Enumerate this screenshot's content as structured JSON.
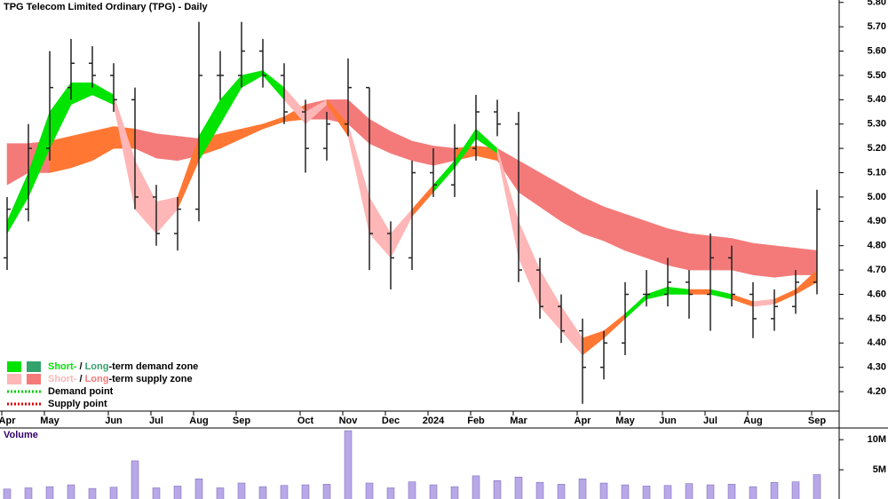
{
  "chart_data": {
    "type": "candlestick",
    "title": "TPG Telecom Limited Ordinary (TPG) - Daily",
    "categories": [
      "Apr",
      null,
      "May",
      null,
      null,
      "Jun",
      null,
      "Jul",
      null,
      "Aug",
      null,
      "Sep",
      null,
      null,
      "Oct",
      null,
      "Nov",
      null,
      "Dec",
      null,
      "2024",
      null,
      "Feb",
      null,
      "Mar",
      null,
      null,
      "Apr",
      null,
      "May",
      null,
      "Jun",
      null,
      "Jul",
      null,
      "Aug",
      null,
      null,
      "Sep"
    ],
    "open": [
      4.75,
      4.95,
      5.2,
      5.45,
      5.55,
      5.5,
      5.4,
      5.0,
      4.85,
      4.95,
      5.5,
      5.5,
      5.6,
      5.5,
      5.35,
      5.2,
      5.3,
      5.45,
      4.85,
      4.75,
      5.1,
      5.05,
      5.2,
      5.35,
      5.3,
      4.7,
      4.55,
      4.45,
      4.3,
      4.4,
      4.6,
      4.6,
      4.65,
      4.6,
      4.75,
      4.6,
      4.5,
      4.55,
      4.65
    ],
    "high": [
      5.0,
      5.3,
      5.6,
      5.65,
      5.62,
      5.55,
      5.45,
      5.05,
      5.0,
      5.72,
      5.6,
      5.72,
      5.65,
      5.55,
      5.4,
      5.35,
      5.57,
      5.45,
      4.9,
      5.15,
      5.2,
      5.3,
      5.42,
      5.4,
      5.35,
      4.75,
      4.6,
      4.5,
      4.45,
      4.65,
      4.7,
      4.75,
      4.7,
      4.85,
      4.8,
      4.65,
      4.62,
      4.7,
      5.03
    ],
    "low": [
      4.7,
      4.9,
      5.15,
      5.4,
      5.45,
      5.35,
      4.95,
      4.8,
      4.78,
      4.9,
      5.4,
      5.45,
      5.45,
      5.3,
      5.1,
      5.15,
      5.25,
      4.7,
      4.62,
      4.7,
      5.0,
      5.0,
      5.15,
      5.25,
      4.65,
      4.5,
      4.4,
      4.15,
      4.25,
      4.35,
      4.55,
      4.55,
      4.5,
      4.45,
      4.55,
      4.42,
      4.45,
      4.52,
      4.6
    ],
    "close": [
      4.95,
      5.2,
      5.45,
      5.55,
      5.5,
      5.4,
      5.0,
      4.85,
      4.95,
      5.5,
      5.5,
      5.6,
      5.5,
      5.35,
      5.2,
      5.3,
      5.45,
      4.85,
      4.75,
      5.1,
      5.05,
      5.2,
      5.35,
      5.3,
      4.7,
      4.55,
      4.45,
      4.3,
      4.4,
      4.6,
      4.6,
      4.65,
      4.6,
      4.75,
      4.6,
      4.5,
      4.55,
      4.65,
      4.95
    ],
    "candle_color": "#222222",
    "long_zone": {
      "upper": [
        5.22,
        5.22,
        5.23,
        5.25,
        5.27,
        5.29,
        5.28,
        5.26,
        5.25,
        5.24,
        5.26,
        5.28,
        5.3,
        5.33,
        5.38,
        5.4,
        5.4,
        5.32,
        5.27,
        5.23,
        5.21,
        5.2,
        5.21,
        5.2,
        5.15,
        5.1,
        5.05,
        5.0,
        4.96,
        4.93,
        4.9,
        4.87,
        4.85,
        4.84,
        4.83,
        4.81,
        4.8,
        4.79,
        4.78
      ],
      "lower": [
        5.05,
        5.1,
        5.1,
        5.12,
        5.15,
        5.2,
        5.2,
        5.16,
        5.15,
        5.17,
        5.2,
        5.24,
        5.28,
        5.31,
        5.32,
        5.32,
        5.3,
        5.22,
        5.18,
        5.15,
        5.13,
        5.15,
        5.17,
        5.15,
        5.02,
        4.96,
        4.9,
        4.85,
        4.82,
        4.78,
        4.75,
        4.72,
        4.7,
        4.7,
        4.7,
        4.68,
        4.67,
        4.68,
        4.68
      ],
      "colors": [
        "#f47a7a",
        "#f47a7a",
        "#ff7733",
        "#ff7733",
        "#ff7733",
        "#ff7733",
        "#f47a7a",
        "#f47a7a",
        "#f47a7a",
        "#ff7733",
        "#ff7733",
        "#ff7733",
        "#ff7733",
        "#ff7733",
        "#f47a7a",
        "#f47a7a",
        "#f47a7a",
        "#f47a7a",
        "#f47a7a",
        "#f47a7a",
        "#f47a7a",
        "#ff7733",
        "#ff7733",
        "#f47a7a",
        "#f47a7a",
        "#f47a7a",
        "#f47a7a",
        "#f47a7a",
        "#f47a7a",
        "#f47a7a",
        "#f47a7a",
        "#f47a7a",
        "#f47a7a",
        "#f47a7a",
        "#f47a7a",
        "#f47a7a",
        "#f47a7a",
        "#f47a7a",
        "#f47a7a"
      ]
    },
    "short_zone": {
      "upper": [
        4.9,
        5.1,
        5.35,
        5.47,
        5.47,
        5.42,
        5.15,
        4.98,
        5.0,
        5.25,
        5.4,
        5.5,
        5.52,
        5.45,
        5.35,
        5.4,
        5.3,
        5.0,
        4.85,
        4.95,
        5.05,
        5.15,
        5.28,
        5.2,
        4.9,
        4.7,
        4.55,
        4.42,
        4.45,
        4.52,
        4.6,
        4.63,
        4.62,
        4.62,
        4.6,
        4.57,
        4.58,
        4.62,
        4.7
      ],
      "lower": [
        4.85,
        5.0,
        5.2,
        5.38,
        5.42,
        5.38,
        4.95,
        4.85,
        4.95,
        5.15,
        5.3,
        5.45,
        5.5,
        5.4,
        5.3,
        5.38,
        5.25,
        4.85,
        4.75,
        4.92,
        5.02,
        5.12,
        5.24,
        5.18,
        4.75,
        4.55,
        4.45,
        4.35,
        4.42,
        4.5,
        4.58,
        4.6,
        4.6,
        4.6,
        4.58,
        4.55,
        4.56,
        4.6,
        4.65
      ],
      "colors": [
        "#00e400",
        "#00e400",
        "#00e400",
        "#00e400",
        "#00e400",
        "#ffb6b6",
        "#ffb6b6",
        "#ffb6b6",
        "#ff7733",
        "#00e400",
        "#00e400",
        "#00e400",
        "#00e400",
        "#ffb6b6",
        "#ffb6b6",
        "#ff7733",
        "#ffb6b6",
        "#ffb6b6",
        "#ffb6b6",
        "#ff7733",
        "#00e400",
        "#00e400",
        "#00e400",
        "#ffb6b6",
        "#ffb6b6",
        "#ffb6b6",
        "#ffb6b6",
        "#ff7733",
        "#ff7733",
        "#00e400",
        "#00e400",
        "#00e400",
        "#ff7733",
        "#00e400",
        "#ff7733",
        "#ffb6b6",
        "#ff7733",
        "#ff7733",
        "#00e400"
      ]
    },
    "ylim": [
      4.12,
      5.81
    ],
    "yticks": [
      {
        "value": 4.2,
        "label": "4.20"
      },
      {
        "value": 4.3,
        "label": "4.30"
      },
      {
        "value": 4.4,
        "label": "4.40"
      },
      {
        "value": 4.5,
        "label": "4.50"
      },
      {
        "value": 4.6,
        "label": "4.60"
      },
      {
        "value": 4.7,
        "label": "4.70"
      },
      {
        "value": 4.8,
        "label": "4.80"
      },
      {
        "value": 4.9,
        "label": "4.90"
      },
      {
        "value": 5.0,
        "label": "5.00"
      },
      {
        "value": 5.1,
        "label": "5.10"
      },
      {
        "value": 5.2,
        "label": "5.20"
      },
      {
        "value": 5.3,
        "label": "5.30"
      },
      {
        "value": 5.4,
        "label": "5.40"
      },
      {
        "value": 5.5,
        "label": "5.50"
      },
      {
        "value": 5.6,
        "label": "5.60"
      },
      {
        "value": 5.7,
        "label": "5.70"
      },
      {
        "value": 5.8,
        "label": "5.80"
      }
    ],
    "volume": {
      "label": "Volume",
      "color": "#b8a8e8",
      "values": [
        1800000,
        2000000,
        2200000,
        2500000,
        1900000,
        2100000,
        6500000,
        2000000,
        2300000,
        3500000,
        2000000,
        2800000,
        2200000,
        2400000,
        2500000,
        2600000,
        11500000,
        2800000,
        2000000,
        3000000,
        2500000,
        2200000,
        4000000,
        3200000,
        3800000,
        2900000,
        2600000,
        3500000,
        2800000,
        2500000,
        2300000,
        2400000,
        2700000,
        2500000,
        2600000,
        2200000,
        2900000,
        3000000,
        4200000
      ],
      "ylim": [
        0,
        11800000
      ],
      "yticks": [
        {
          "value": 5000000,
          "label": "5M"
        },
        {
          "value": 10000000,
          "label": "10M"
        }
      ]
    },
    "legend": [
      {
        "parts": [
          "Short-",
          " / ",
          "Long",
          "-term demand zone"
        ],
        "text_colors": [
          "#00e400",
          "#000000",
          "#33a36b",
          "#000000"
        ],
        "colors": [
          "#00e400",
          "#33a36b"
        ]
      },
      {
        "parts": [
          "Short-",
          " / ",
          "Long",
          "-term supply zone"
        ],
        "text_colors": [
          "#ffb6b6",
          "#000000",
          "#f47a7a",
          "#000000"
        ],
        "colors": [
          "#ffb6b6",
          "#f47a7a"
        ]
      },
      {
        "parts": [
          "Demand point"
        ],
        "text_colors": [
          "#000000"
        ],
        "line_color": "#00cc00"
      },
      {
        "parts": [
          "Supply point"
        ],
        "text_colors": [
          "#000000"
        ],
        "line_color": "#dd0000"
      }
    ]
  }
}
